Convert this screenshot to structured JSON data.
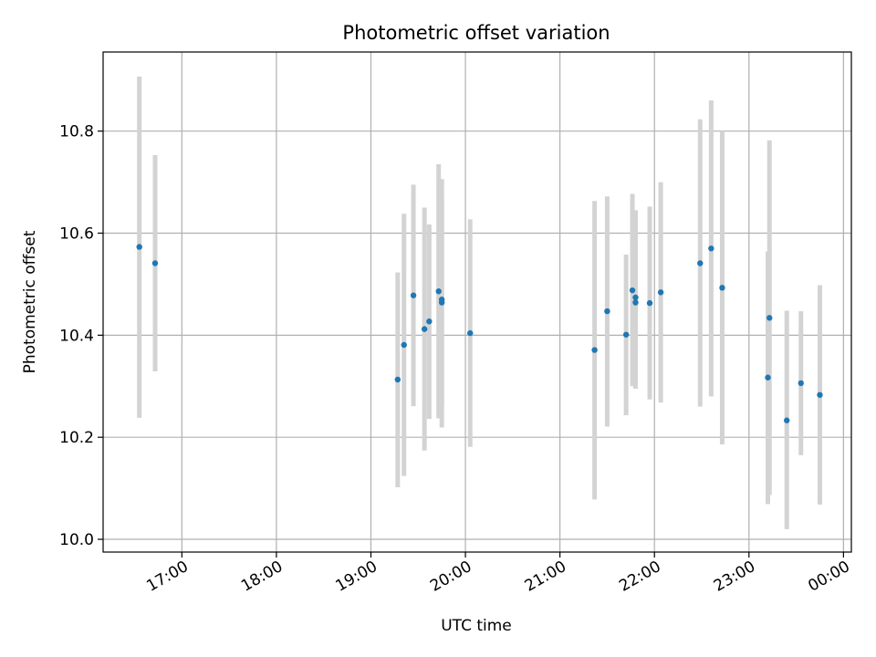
{
  "chart_data": {
    "type": "scatter",
    "title": "Photometric offset variation",
    "xlabel": "UTC time",
    "ylabel": "Photometric offset",
    "xlim": [
      "16:10",
      "00:05"
    ],
    "ylim": [
      9.975,
      10.955
    ],
    "x_ticks": [
      "17:00",
      "18:00",
      "19:00",
      "20:00",
      "21:00",
      "22:00",
      "23:00",
      "00:00"
    ],
    "y_ticks": [
      "10.0",
      "10.2",
      "10.4",
      "10.6",
      "10.8"
    ],
    "grid": true,
    "colors": {
      "point": "#1f77b4",
      "error_bar": "#d3d3d3",
      "grid": "#b0b0b0",
      "axes": "#000000"
    },
    "points": [
      {
        "t": "16:33",
        "y": 10.573,
        "lo": 10.238,
        "hi": 10.907
      },
      {
        "t": "16:43",
        "y": 10.541,
        "lo": 10.329,
        "hi": 10.753
      },
      {
        "t": "19:17",
        "y": 10.313,
        "lo": 10.102,
        "hi": 10.523
      },
      {
        "t": "19:21",
        "y": 10.381,
        "lo": 10.124,
        "hi": 10.638
      },
      {
        "t": "19:27",
        "y": 10.478,
        "lo": 10.261,
        "hi": 10.695
      },
      {
        "t": "19:34",
        "y": 10.412,
        "lo": 10.174,
        "hi": 10.65
      },
      {
        "t": "19:37",
        "y": 10.427,
        "lo": 10.236,
        "hi": 10.617
      },
      {
        "t": "19:43",
        "y": 10.486,
        "lo": 10.237,
        "hi": 10.735
      },
      {
        "t": "19:45",
        "y": 10.47,
        "lo": 10.219,
        "hi": 10.706
      },
      {
        "t": "19:45",
        "y": 10.464,
        "lo": 10.262,
        "hi": 10.666
      },
      {
        "t": "20:03",
        "y": 10.404,
        "lo": 10.181,
        "hi": 10.627
      },
      {
        "t": "21:22",
        "y": 10.371,
        "lo": 10.078,
        "hi": 10.663
      },
      {
        "t": "21:30",
        "y": 10.447,
        "lo": 10.221,
        "hi": 10.672
      },
      {
        "t": "21:42",
        "y": 10.401,
        "lo": 10.243,
        "hi": 10.558
      },
      {
        "t": "21:46",
        "y": 10.488,
        "lo": 10.3,
        "hi": 10.677
      },
      {
        "t": "21:48",
        "y": 10.474,
        "lo": 10.302,
        "hi": 10.645
      },
      {
        "t": "21:48",
        "y": 10.464,
        "lo": 10.295,
        "hi": 10.633
      },
      {
        "t": "21:57",
        "y": 10.463,
        "lo": 10.274,
        "hi": 10.652
      },
      {
        "t": "22:04",
        "y": 10.484,
        "lo": 10.268,
        "hi": 10.7
      },
      {
        "t": "22:29",
        "y": 10.541,
        "lo": 10.26,
        "hi": 10.823
      },
      {
        "t": "22:36",
        "y": 10.57,
        "lo": 10.28,
        "hi": 10.86
      },
      {
        "t": "22:43",
        "y": 10.493,
        "lo": 10.186,
        "hi": 10.8
      },
      {
        "t": "23:12",
        "y": 10.317,
        "lo": 10.069,
        "hi": 10.564
      },
      {
        "t": "23:13",
        "y": 10.434,
        "lo": 10.087,
        "hi": 10.782
      },
      {
        "t": "23:24",
        "y": 10.233,
        "lo": 10.02,
        "hi": 10.448
      },
      {
        "t": "23:33",
        "y": 10.306,
        "lo": 10.165,
        "hi": 10.447
      },
      {
        "t": "23:45",
        "y": 10.283,
        "lo": 10.068,
        "hi": 10.498
      }
    ]
  }
}
